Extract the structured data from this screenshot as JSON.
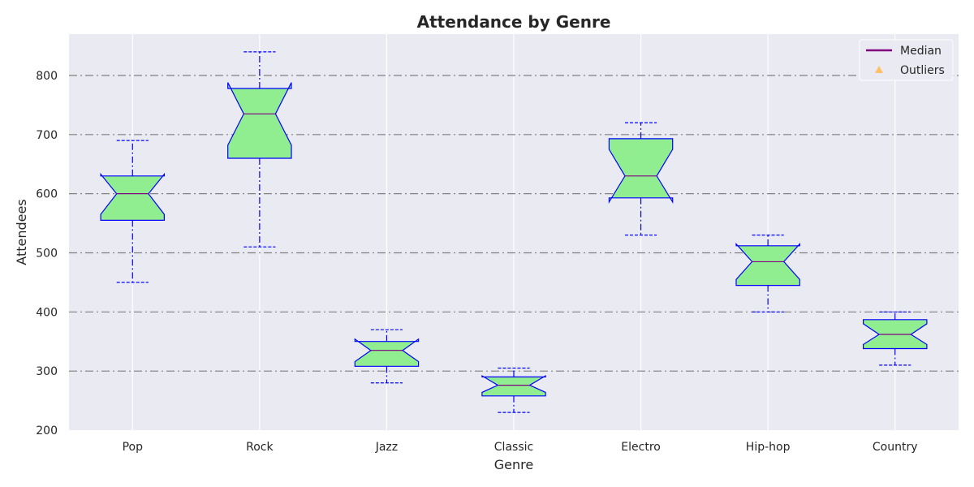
{
  "chart_data": {
    "type": "boxplot",
    "title": "Attendance by Genre",
    "xlabel": "Genre",
    "ylabel": "Attendees",
    "ylim": [
      200,
      870
    ],
    "yticks": [
      200,
      300,
      400,
      500,
      600,
      700,
      800
    ],
    "grid": "horizontal dash-dot",
    "notched": true,
    "legend": {
      "placement": "top-right",
      "entries": [
        {
          "label": "Median",
          "color": "#800080",
          "marker": "line"
        },
        {
          "label": "Outliers",
          "color": "#ffbf66",
          "marker": "triangle"
        }
      ]
    },
    "colors": {
      "background": "#eaeaf2",
      "box_fill": "#90ee90",
      "box_edge": "#0000ff",
      "whisker": "#0000ff",
      "median": "#800080",
      "grid_h": "#808080",
      "grid_v": "#ffffff"
    },
    "categories": [
      "Pop",
      "Rock",
      "Jazz",
      "Classic",
      "Electro",
      "Hip-hop",
      "Country"
    ],
    "boxes": [
      {
        "category": "Pop",
        "whislo": 450,
        "q1": 555,
        "med": 600,
        "q3": 630,
        "whishi": 690,
        "notch_lo": 565,
        "notch_hi": 633
      },
      {
        "category": "Rock",
        "whislo": 510,
        "q1": 660,
        "med": 735,
        "q3": 778,
        "whishi": 840,
        "notch_lo": 682,
        "notch_hi": 788
      },
      {
        "category": "Jazz",
        "whislo": 280,
        "q1": 308,
        "med": 335,
        "q3": 350,
        "whishi": 370,
        "notch_lo": 316,
        "notch_hi": 354
      },
      {
        "category": "Classic",
        "whislo": 230,
        "q1": 258,
        "med": 276,
        "q3": 290,
        "whishi": 305,
        "notch_lo": 264,
        "notch_hi": 292
      },
      {
        "category": "Electro",
        "whislo": 530,
        "q1": 593,
        "med": 630,
        "q3": 693,
        "whishi": 720,
        "notch_lo": 586,
        "notch_hi": 675
      },
      {
        "category": "Hip-hop",
        "whislo": 400,
        "q1": 445,
        "med": 485,
        "q3": 512,
        "whishi": 530,
        "notch_lo": 455,
        "notch_hi": 515
      },
      {
        "category": "Country",
        "whislo": 310,
        "q1": 338,
        "med": 362,
        "q3": 387,
        "whishi": 400,
        "notch_lo": 345,
        "notch_hi": 380
      }
    ]
  }
}
